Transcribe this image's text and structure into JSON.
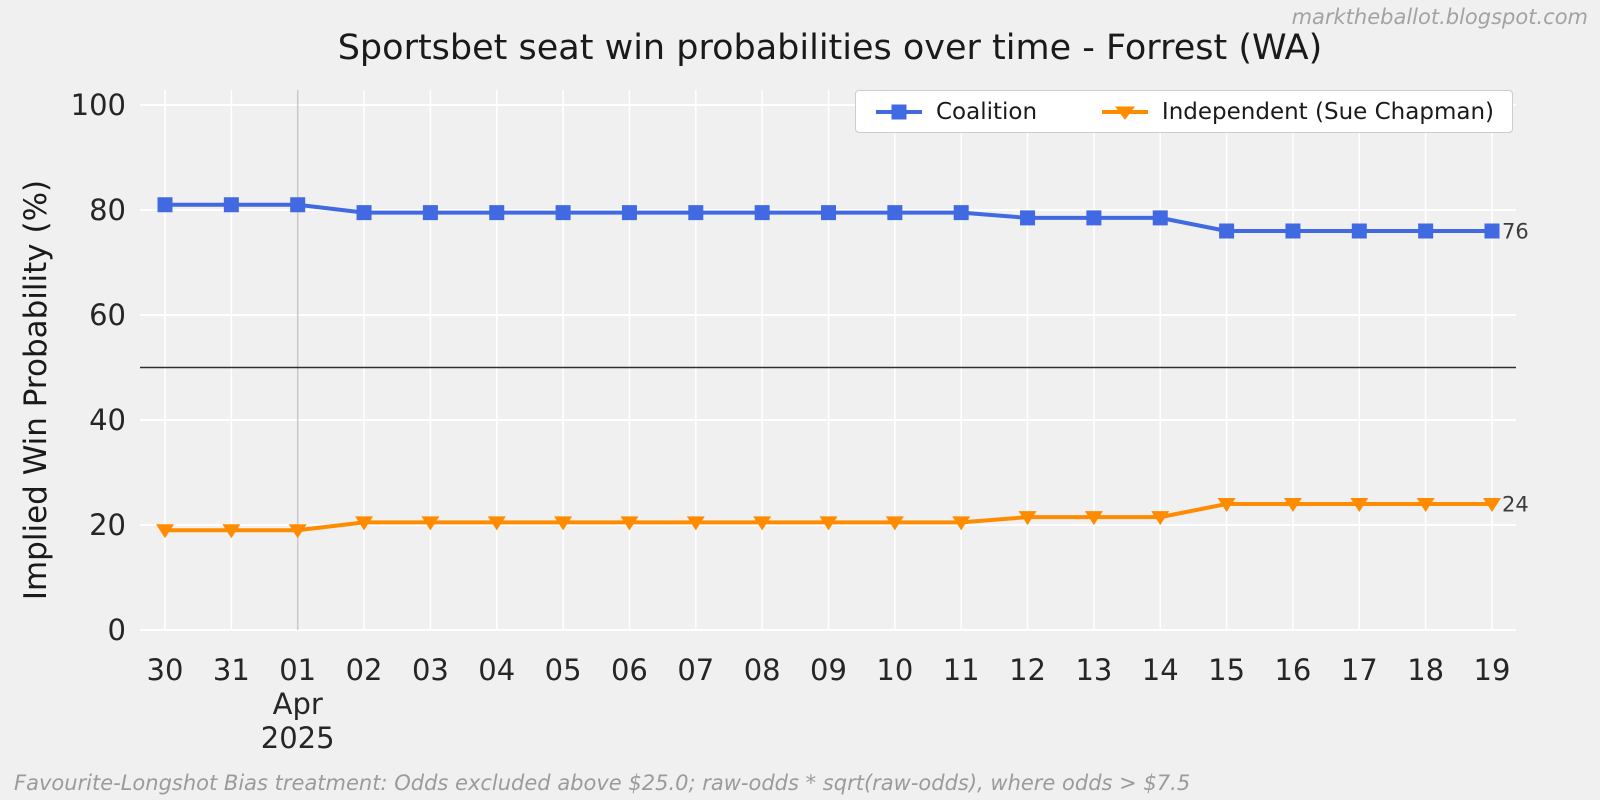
{
  "watermark": "marktheballot.blogspot.com",
  "footer": "Favourite-Longshot Bias treatment: Odds excluded above $25.0; raw-odds * sqrt(raw-odds), where odds > $7.5",
  "chart_data": {
    "type": "line",
    "title": "Sportsbet seat win probabilities over time - Forrest (WA)",
    "ylabel": "Implied Win Probability (%)",
    "xlabel": "",
    "ylim": [
      0,
      100
    ],
    "y_ticks": [
      0,
      20,
      40,
      60,
      80,
      100
    ],
    "x_labels": [
      "30",
      "31",
      "01",
      "02",
      "03",
      "04",
      "05",
      "06",
      "07",
      "08",
      "09",
      "10",
      "11",
      "12",
      "13",
      "14",
      "15",
      "16",
      "17",
      "18",
      "19"
    ],
    "x_sub_label": {
      "index": 2,
      "lines": [
        "Apr",
        "2025"
      ]
    },
    "reference_line": 50,
    "grid": true,
    "legend_position": "top-right",
    "background": "#f0f0f0",
    "series": [
      {
        "name": "Coalition",
        "color": "#4169e1",
        "marker": "square",
        "end_label": "76",
        "values": [
          81,
          81,
          81,
          79.5,
          79.5,
          79.5,
          79.5,
          79.5,
          79.5,
          79.5,
          79.5,
          79.5,
          79.5,
          78.5,
          78.5,
          78.5,
          76,
          76,
          76,
          76,
          76
        ]
      },
      {
        "name": "Independent (Sue Chapman)",
        "color": "#ff8c00",
        "marker": "triangle-down",
        "end_label": "24",
        "values": [
          19,
          19,
          19,
          20.5,
          20.5,
          20.5,
          20.5,
          20.5,
          20.5,
          20.5,
          20.5,
          20.5,
          20.5,
          21.5,
          21.5,
          21.5,
          24,
          24,
          24,
          24,
          24
        ]
      }
    ]
  }
}
